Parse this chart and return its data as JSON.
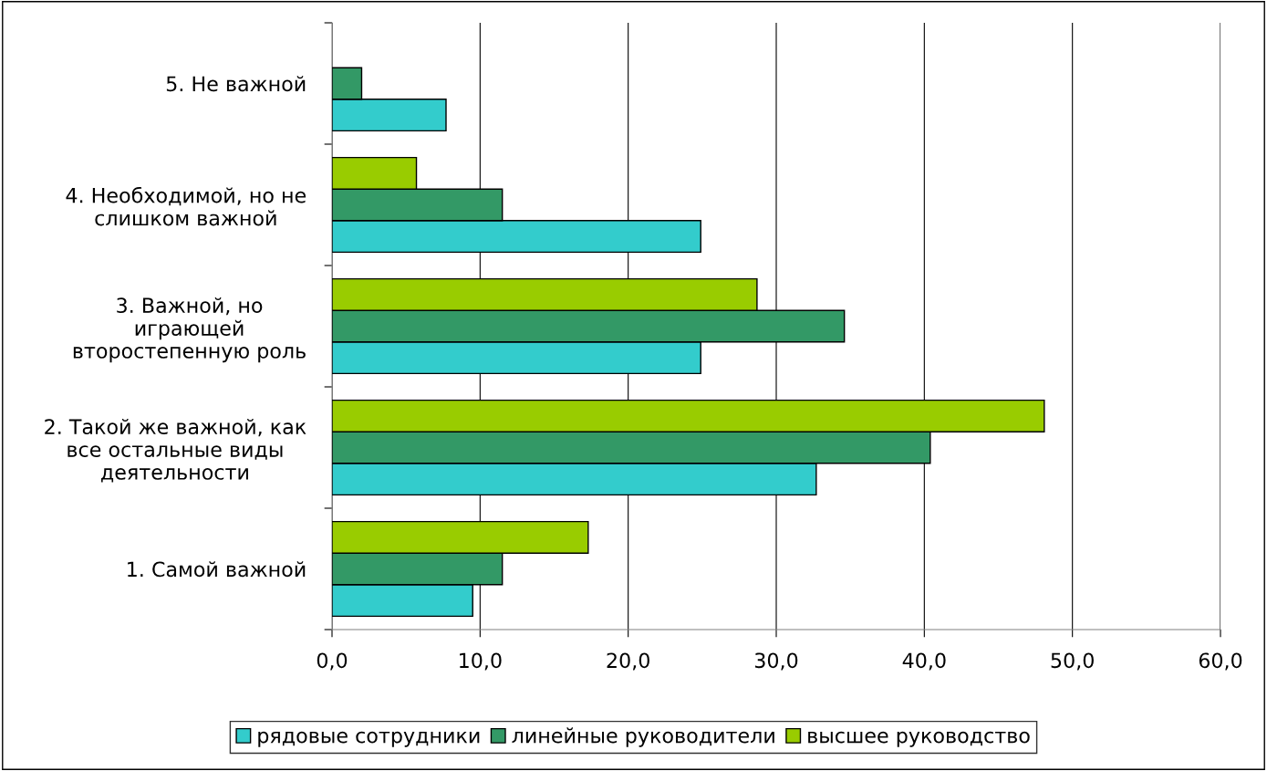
{
  "chart_data": {
    "type": "bar",
    "orientation": "horizontal",
    "categories": [
      "5. Не важной",
      "4. Необходимой, но не\nслишком важной",
      "3. Важной, но\nиграющей\nвторостепенную роль",
      "2. Такой же важной, как\nвсе остальные виды\nдеятельности",
      "1. Самой важной"
    ],
    "series": [
      {
        "name": "рядовые сотрудники",
        "color": "#33cccc",
        "values": [
          7.7,
          24.9,
          24.9,
          32.7,
          9.5
        ]
      },
      {
        "name": "линейные руководители",
        "color": "#339966",
        "values": [
          2.0,
          11.5,
          34.6,
          40.4,
          11.5
        ]
      },
      {
        "name": "высшее руководство",
        "color": "#99cc00",
        "values": [
          null,
          5.7,
          28.7,
          48.1,
          17.3
        ]
      }
    ],
    "xlim": [
      0,
      60
    ],
    "xticks": [
      {
        "value": 0,
        "label": "0,0"
      },
      {
        "value": 10,
        "label": "10,0"
      },
      {
        "value": 20,
        "label": "20,0"
      },
      {
        "value": 30,
        "label": "30,0"
      },
      {
        "value": 40,
        "label": "40,0"
      },
      {
        "value": 50,
        "label": "50,0"
      },
      {
        "value": 60,
        "label": "60,0"
      }
    ],
    "grid": "x",
    "legend": "bottom"
  }
}
